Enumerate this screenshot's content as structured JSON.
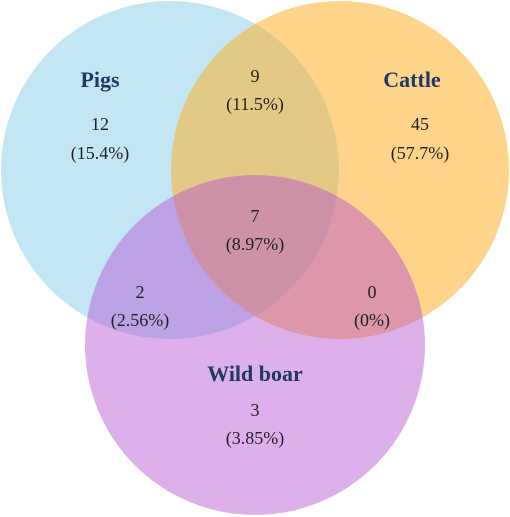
{
  "sets": [
    {
      "name": "Pigs"
    },
    {
      "name": "Cattle"
    },
    {
      "name": "Wild boar"
    }
  ],
  "regions": [
    {
      "count": 12,
      "percent": "(15.4%)"
    },
    {
      "count": 9,
      "percent": "(11.5%)"
    },
    {
      "count": 45,
      "percent": "(57.7%)"
    },
    {
      "count": 7,
      "percent": "(8.97%)"
    },
    {
      "count": 2,
      "percent": "(2.56%)"
    },
    {
      "count": 0,
      "percent": "(0%)"
    },
    {
      "count": 3,
      "percent": "(3.85%)"
    }
  ]
}
